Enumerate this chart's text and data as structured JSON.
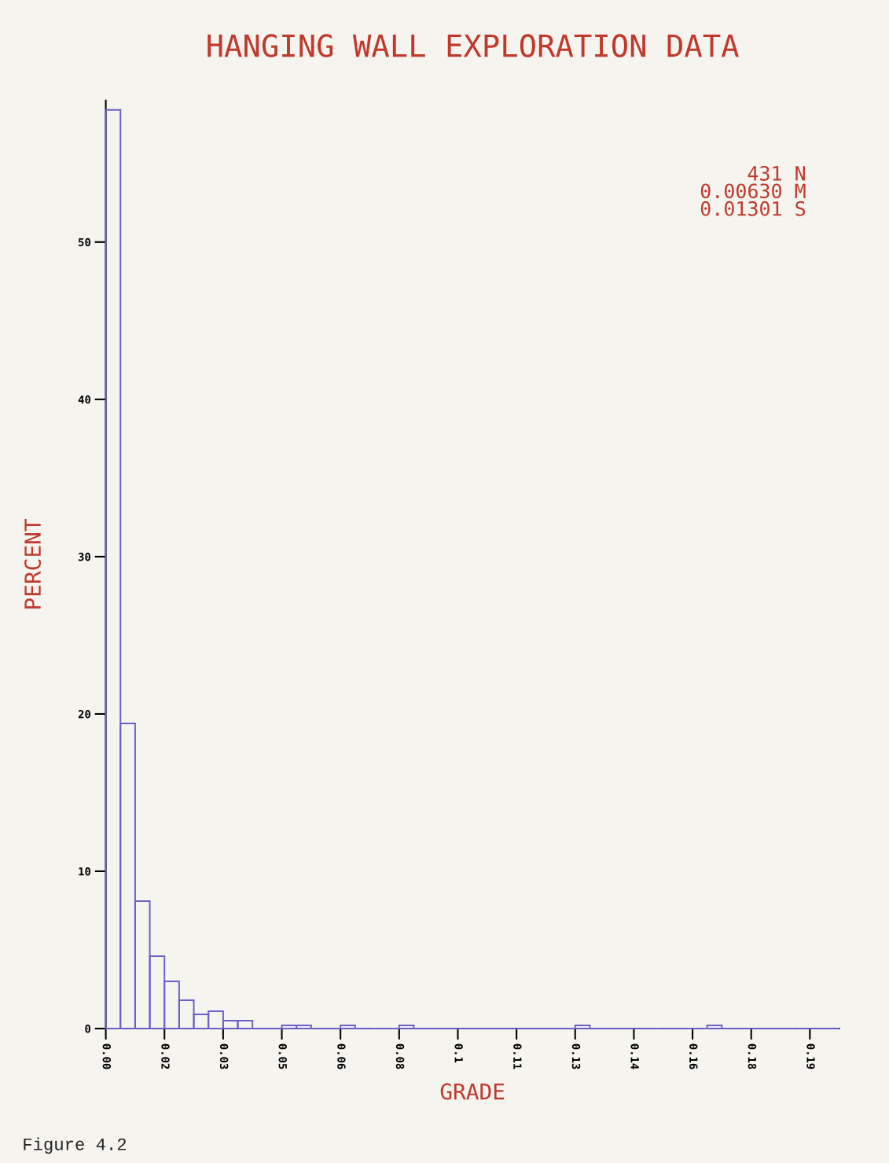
{
  "chart_data": {
    "type": "histogram",
    "title": "HANGING WALL EXPLORATION DATA",
    "xlabel": "GRADE",
    "ylabel": "PERCENT",
    "bins": [
      0,
      0.004,
      0.008,
      0.012,
      0.016,
      0.02,
      0.024,
      0.028,
      0.032,
      0.036,
      0.04,
      0.044,
      0.048,
      0.052,
      0.056,
      0.06,
      0.064,
      0.068,
      0.072,
      0.076,
      0.08,
      0.084,
      0.088,
      0.092,
      0.096,
      0.1,
      0.104,
      0.108,
      0.112,
      0.116,
      0.12,
      0.124,
      0.128,
      0.132,
      0.136,
      0.14,
      0.144,
      0.148,
      0.152,
      0.156,
      0.16,
      0.164,
      0.168,
      0.172,
      0.176,
      0.18,
      0.184,
      0.188,
      0.192,
      0.196,
      0.2
    ],
    "values": [
      58.4,
      19.4,
      8.1,
      4.6,
      3.0,
      1.8,
      0.9,
      1.1,
      0.5,
      0.5,
      0,
      0,
      0.2,
      0.2,
      0,
      0,
      0.2,
      0,
      0,
      0,
      0.2,
      0,
      0,
      0,
      0,
      0,
      0,
      0,
      0,
      0,
      0,
      0,
      0.2,
      0,
      0,
      0,
      0,
      0,
      0,
      0,
      0,
      0.2,
      0,
      0,
      0,
      0,
      0,
      0,
      0,
      0
    ],
    "color": "#6c5fc7",
    "xlim": [
      0,
      0.2
    ],
    "ylim": [
      0,
      59
    ],
    "xticks": [
      {
        "value": 0,
        "label": "0.00"
      },
      {
        "value": 0.016,
        "label": "0.02"
      },
      {
        "value": 0.032,
        "label": "0.03"
      },
      {
        "value": 0.048,
        "label": "0.05"
      },
      {
        "value": 0.064,
        "label": "0.06"
      },
      {
        "value": 0.08,
        "label": "0.08"
      },
      {
        "value": 0.096,
        "label": "0.1"
      },
      {
        "value": 0.112,
        "label": "0.11"
      },
      {
        "value": 0.128,
        "label": "0.13"
      },
      {
        "value": 0.144,
        "label": "0.14"
      },
      {
        "value": 0.16,
        "label": "0.16"
      },
      {
        "value": 0.176,
        "label": "0.18"
      },
      {
        "value": 0.192,
        "label": "0.19"
      }
    ],
    "yticks": [
      0,
      10,
      20,
      30,
      40,
      50
    ],
    "grid": false,
    "legend": false,
    "annotations": [
      "431 N\n0.00630 M\n0.01301 S",
      "Figure 4.2"
    ]
  }
}
